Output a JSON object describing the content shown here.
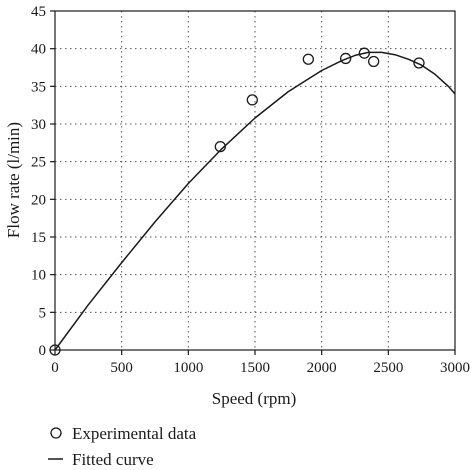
{
  "chart_data": {
    "type": "scatter",
    "xlabel": "Speed (rpm)",
    "ylabel": "Flow rate (l/min)",
    "xlim": [
      0,
      3000
    ],
    "ylim": [
      0,
      45
    ],
    "xticks": [
      0,
      500,
      1000,
      1500,
      2000,
      2500,
      3000
    ],
    "yticks": [
      0,
      5,
      10,
      15,
      20,
      25,
      30,
      35,
      40,
      45
    ],
    "grid": "dotted",
    "legend": "bottom-left, below plot",
    "series": [
      {
        "name": "Experimental data",
        "kind": "markers",
        "marker": "open-circle",
        "points": [
          {
            "x": 0,
            "y": 0
          },
          {
            "x": 1240,
            "y": 27
          },
          {
            "x": 1480,
            "y": 33.2
          },
          {
            "x": 1900,
            "y": 38.6
          },
          {
            "x": 2180,
            "y": 38.7
          },
          {
            "x": 2320,
            "y": 39.4
          },
          {
            "x": 2390,
            "y": 38.3
          },
          {
            "x": 2730,
            "y": 38.1
          }
        ]
      },
      {
        "name": "Fitted curve",
        "kind": "line",
        "points": [
          {
            "x": 0,
            "y": 0
          },
          {
            "x": 250,
            "y": 6.0
          },
          {
            "x": 500,
            "y": 11.6
          },
          {
            "x": 750,
            "y": 17.0
          },
          {
            "x": 1000,
            "y": 22.1
          },
          {
            "x": 1250,
            "y": 26.7
          },
          {
            "x": 1500,
            "y": 30.8
          },
          {
            "x": 1750,
            "y": 34.3
          },
          {
            "x": 2000,
            "y": 37.1
          },
          {
            "x": 2150,
            "y": 38.4
          },
          {
            "x": 2250,
            "y": 39.1
          },
          {
            "x": 2350,
            "y": 39.5
          },
          {
            "x": 2450,
            "y": 39.5
          },
          {
            "x": 2550,
            "y": 39.2
          },
          {
            "x": 2650,
            "y": 38.6
          },
          {
            "x": 2750,
            "y": 37.8
          },
          {
            "x": 2850,
            "y": 36.6
          },
          {
            "x": 2950,
            "y": 35.0
          },
          {
            "x": 3000,
            "y": 34.0
          }
        ]
      }
    ]
  }
}
